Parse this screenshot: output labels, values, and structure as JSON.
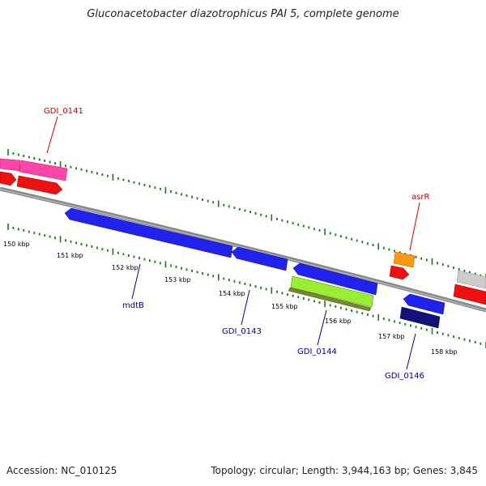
{
  "title": "Gluconacetobacter diazotrophicus PAI 5, complete genome",
  "footer": {
    "accession": "Accession: NC_010125",
    "topology": "Topology: circular; Length: 3,944,163 bp; Genes: 3,845"
  },
  "ticks": [
    {
      "label": "150 kbp"
    },
    {
      "label": "151 kbp"
    },
    {
      "label": "152 kbp"
    },
    {
      "label": "153 kbp"
    },
    {
      "label": "154 kbp"
    },
    {
      "label": "155 kbp"
    },
    {
      "label": "156 kbp"
    },
    {
      "label": "157 kbp"
    },
    {
      "label": "158 kbp"
    }
  ],
  "gene_labels": [
    {
      "id": "gdi-0141",
      "text": "GDI_0141",
      "color": "#cc0000"
    },
    {
      "id": "asrR",
      "text": "asrR",
      "color": "#cc0000"
    },
    {
      "id": "mdtB",
      "text": "mdtB",
      "color": "#00008b"
    },
    {
      "id": "gdi-0143",
      "text": "GDI_0143",
      "color": "#00008b"
    },
    {
      "id": "gdi-0144",
      "text": "GDI_0144",
      "color": "#00008b"
    },
    {
      "id": "gdi-0146",
      "text": "GDI_0146",
      "color": "#00008b"
    }
  ],
  "colors": {
    "backbone": "#888888",
    "tick": "#1a7a1a",
    "red": "#ee1111",
    "magenta": "#ff44aa",
    "blue": "#2222ee",
    "navy": "#12127a",
    "orange": "#ff9911",
    "lime": "#99ee33",
    "olive": "#778833",
    "grey": "#cccccc"
  }
}
